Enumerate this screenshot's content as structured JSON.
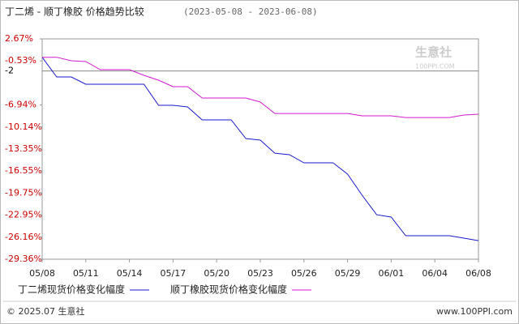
{
  "chart_data": {
    "type": "line",
    "title": "丁二烯 - 顺丁橡胶 价格趋势比较",
    "subtitle": "(2023-05-08 - 2023-06-08)",
    "categories": [
      "05/08",
      null,
      null,
      "05/11",
      null,
      null,
      "05/14",
      null,
      null,
      "05/17",
      null,
      null,
      "05/20",
      null,
      null,
      "05/23",
      null,
      null,
      "05/26",
      null,
      null,
      "05/29",
      null,
      null,
      "06/01",
      null,
      null,
      "06/04",
      null,
      null,
      "06/08"
    ],
    "series": [
      {
        "name": "丁二烯现货价格变化幅度",
        "color": "#1a1acc",
        "values": [
          0,
          -2.87,
          -2.87,
          -3.93,
          -3.93,
          -3.93,
          -3.93,
          -3.93,
          -6.99,
          -6.99,
          -7.22,
          -9.11,
          -9.11,
          -9.11,
          -11.82,
          -12.05,
          -13.94,
          -14.17,
          -15.35,
          -15.35,
          -15.35,
          -17.0,
          -20.06,
          -22.89,
          -23.24,
          -25.95,
          -25.95,
          -25.95,
          -25.95,
          -26.3,
          -26.66
        ]
      },
      {
        "name": "顺丁橡胶现货价格变化幅度",
        "color": "#d01ad0",
        "values": [
          0,
          0,
          -0.51,
          -0.63,
          -1.81,
          -1.81,
          -1.81,
          -2.63,
          -3.34,
          -4.28,
          -4.28,
          -5.93,
          -5.93,
          -5.93,
          -5.93,
          -6.52,
          -8.17,
          -8.17,
          -8.17,
          -8.17,
          -8.17,
          -8.17,
          -8.52,
          -8.52,
          -8.52,
          -8.76,
          -8.76,
          -8.76,
          -8.76,
          -8.4,
          -8.28
        ]
      }
    ],
    "ylim": [
      -29.36,
      2.67
    ],
    "yticks": [
      {
        "value": 2.67,
        "label": "2.67%"
      },
      {
        "value": -0.53,
        "label": "-0.53%"
      },
      -2,
      {
        "value": -6.94,
        "label": "-6.94%"
      },
      {
        "value": -10.14,
        "label": "-10.14%"
      },
      {
        "value": -13.35,
        "label": "-13.35%"
      },
      {
        "value": -16.55,
        "label": "-16.55%"
      },
      {
        "value": -19.75,
        "label": "-19.75%"
      },
      {
        "value": -22.95,
        "label": "-22.95%"
      },
      {
        "value": -26.16,
        "label": "-26.16%"
      },
      {
        "value": -29.36,
        "label": "-29.36%"
      }
    ],
    "watermark": "生意社",
    "watermark_url": "100PPI.COM",
    "footer_left": "© 2025.07 生意社",
    "footer_right": "www.100PPI.com"
  }
}
